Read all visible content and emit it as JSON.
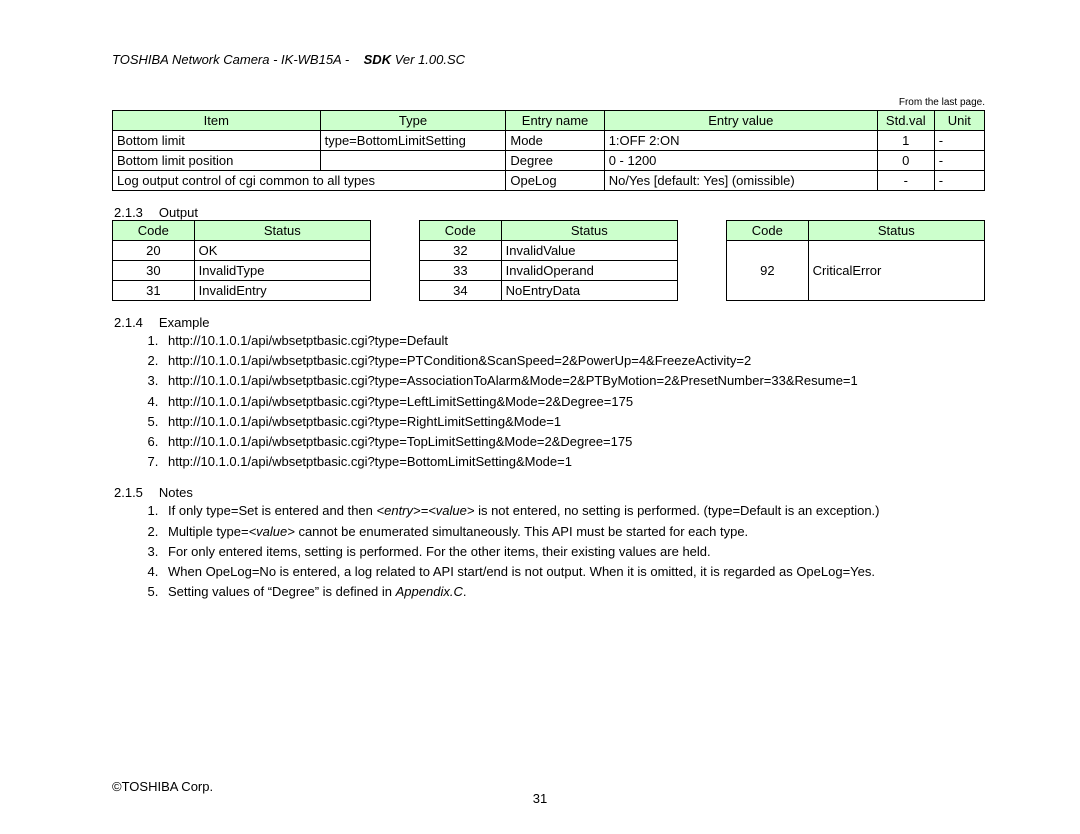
{
  "header": {
    "product": "TOSHIBA Network Camera - IK-WB15A -",
    "sdk_label": "SDK",
    "sdk_ver": " Ver 1.00.SC"
  },
  "fromlast": "From the last page.",
  "mainTable": {
    "headers": [
      "Item",
      "Type",
      "Entry name",
      "Entry value",
      "Std.val",
      "Unit"
    ],
    "colWidths": [
      "190px",
      "170px",
      "90px",
      "250px",
      "52px",
      "46px"
    ],
    "rows": [
      [
        "Bottom limit",
        "type=BottomLimitSetting",
        "Mode",
        "1:OFF    2:ON",
        "1",
        "-"
      ],
      [
        "Bottom limit position",
        "",
        "Degree",
        "0    - 1200",
        "0",
        "-"
      ],
      [
        {
          "text": "Log output control of cgi common to all types",
          "colspan": 2
        },
        null,
        "OpeLog",
        "No/Yes [default: Yes] (omissible)",
        "-",
        "-"
      ]
    ]
  },
  "outputSection": {
    "num": "2.1.3",
    "label": "Output"
  },
  "codeTables": [
    {
      "headers": [
        "Code",
        "Status"
      ],
      "rows": [
        [
          "20",
          "OK"
        ],
        [
          "30",
          "InvalidType"
        ],
        [
          "31",
          "InvalidEntry"
        ]
      ]
    },
    {
      "headers": [
        "Code",
        "Status"
      ],
      "rows": [
        [
          "32",
          "InvalidValue"
        ],
        [
          "33",
          "InvalidOperand"
        ],
        [
          "34",
          "NoEntryData"
        ]
      ]
    },
    {
      "headers": [
        "Code",
        "Status"
      ],
      "rows": [
        [
          "92",
          "CriticalError"
        ]
      ]
    }
  ],
  "exampleSection": {
    "num": "2.1.4",
    "label": "Example"
  },
  "examples": [
    "http://10.1.0.1/api/wbsetptbasic.cgi?type=Default",
    "http://10.1.0.1/api/wbsetptbasic.cgi?type=PTCondition&ScanSpeed=2&PowerUp=4&FreezeActivity=2",
    "http://10.1.0.1/api/wbsetptbasic.cgi?type=AssociationToAlarm&Mode=2&PTByMotion=2&PresetNumber=33&Resume=1",
    "http://10.1.0.1/api/wbsetptbasic.cgi?type=LeftLimitSetting&Mode=2&Degree=175",
    "http://10.1.0.1/api/wbsetptbasic.cgi?type=RightLimitSetting&Mode=1",
    "http://10.1.0.1/api/wbsetptbasic.cgi?type=TopLimitSetting&Mode=2&Degree=175",
    "http://10.1.0.1/api/wbsetptbasic.cgi?type=BottomLimitSetting&Mode=1"
  ],
  "notesSection": {
    "num": "2.1.5",
    "label": "Notes"
  },
  "notes": [
    {
      "parts": [
        {
          "t": "If only type=Set is entered and then "
        },
        {
          "t": "<entry>=<value>",
          "i": true
        },
        {
          "t": " is not entered, no setting is performed. (type=Default is an exception.)"
        }
      ]
    },
    {
      "parts": [
        {
          "t": "Multiple type="
        },
        {
          "t": "<value>",
          "i": true
        },
        {
          "t": " cannot be enumerated simultaneously. This API must be started for each type."
        }
      ]
    },
    {
      "parts": [
        {
          "t": "For only entered items, setting is performed. For the other items, their existing values are held."
        }
      ]
    },
    {
      "parts": [
        {
          "t": "When OpeLog=No is entered, a log related to API start/end is not output. When it is omitted, it is regarded as OpeLog=Yes."
        }
      ]
    },
    {
      "parts": [
        {
          "t": "Setting values of “Degree” is defined in "
        },
        {
          "t": "Appendix.C",
          "i": true
        },
        {
          "t": "."
        }
      ]
    }
  ],
  "footer": "©TOSHIBA Corp.",
  "pageNumber": "31"
}
